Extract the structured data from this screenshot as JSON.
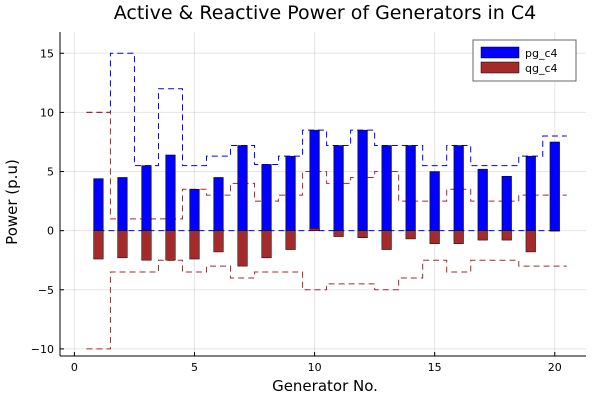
{
  "chart_data": {
    "type": "bar",
    "title": "Active & Reactive Power of Generators in C4",
    "xlabel": "Generator No.",
    "ylabel": "Power (p.u)",
    "xlim": [
      -0.6,
      21.3
    ],
    "ylim": [
      -10.6,
      16.8
    ],
    "xticks": [
      0,
      5,
      10,
      15,
      20
    ],
    "yticks": [
      -10,
      -5,
      0,
      5,
      10,
      15
    ],
    "grid": true,
    "legend_position": "top-right",
    "x": [
      1,
      2,
      3,
      4,
      5,
      6,
      7,
      8,
      9,
      10,
      11,
      12,
      13,
      14,
      15,
      16,
      17,
      18,
      19,
      20
    ],
    "series": [
      {
        "name": "pg_c4",
        "color": "#0000ff",
        "values": [
          4.4,
          4.5,
          5.5,
          6.4,
          3.5,
          4.5,
          7.2,
          5.6,
          6.3,
          8.5,
          7.2,
          8.5,
          7.2,
          7.2,
          5.0,
          7.2,
          5.2,
          4.6,
          6.3,
          7.5
        ],
        "upper_limit": [
          10.0,
          15.0,
          5.5,
          12.0,
          5.5,
          6.3,
          7.2,
          5.6,
          6.3,
          8.5,
          7.2,
          8.5,
          7.2,
          7.2,
          5.5,
          7.2,
          5.5,
          5.5,
          6.3,
          8.0
        ]
      },
      {
        "name": "qg_c4",
        "color": "#a52a2a",
        "values": [
          -2.4,
          -2.3,
          -2.5,
          -2.5,
          -2.4,
          -1.8,
          -3.0,
          -2.3,
          -1.6,
          0.2,
          -0.5,
          -0.6,
          -1.6,
          -0.7,
          -1.1,
          -1.1,
          -0.8,
          -0.8,
          -1.8,
          0.0
        ],
        "upper_limit": [
          10.0,
          1.0,
          1.0,
          1.0,
          3.5,
          3.0,
          4.0,
          2.5,
          3.0,
          5.0,
          4.0,
          4.5,
          5.0,
          2.5,
          2.5,
          3.5,
          2.5,
          2.5,
          3.0,
          3.0
        ],
        "lower_limit": [
          -10.0,
          -3.5,
          -3.5,
          -2.5,
          -3.5,
          -3.0,
          -4.0,
          -3.5,
          -3.5,
          -5.0,
          -4.5,
          -4.5,
          -5.0,
          -4.0,
          -2.5,
          -3.5,
          -2.5,
          -2.5,
          -3.0,
          -3.0
        ]
      }
    ]
  }
}
